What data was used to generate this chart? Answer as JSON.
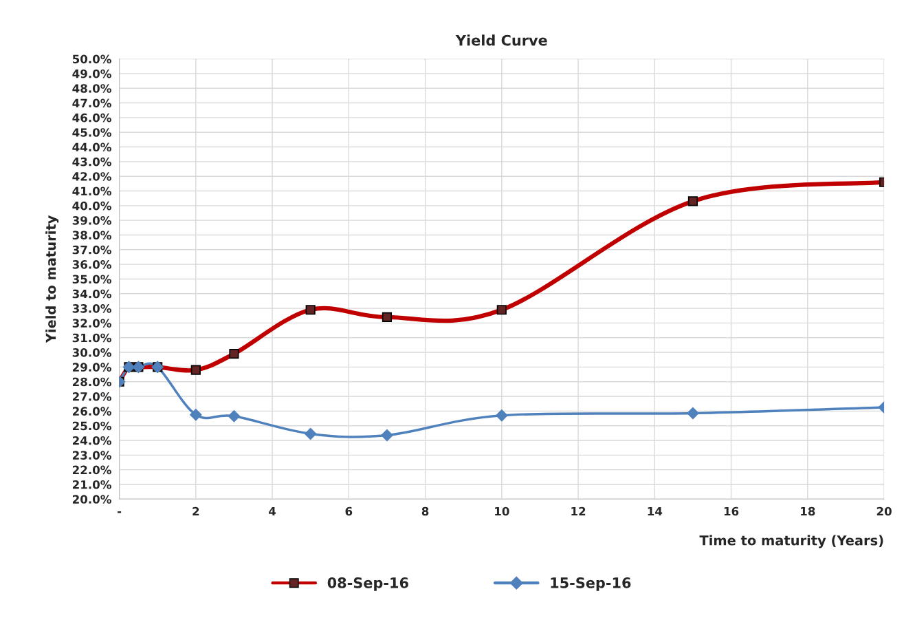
{
  "chart_data": {
    "type": "line",
    "title": "Yield Curve",
    "xlabel": "Time to maturity (Years)",
    "ylabel": "Yield to maturity",
    "xlim": [
      0,
      20
    ],
    "xticks": [
      {
        "value": 0,
        "label": "-"
      },
      2,
      4,
      6,
      8,
      10,
      12,
      14,
      16,
      18,
      20
    ],
    "ylim": [
      20,
      50
    ],
    "yticks": [
      {
        "value": 20,
        "label": "20.0%"
      },
      {
        "value": 21,
        "label": "21.0%"
      },
      {
        "value": 22,
        "label": "22.0%"
      },
      {
        "value": 23,
        "label": "23.0%"
      },
      {
        "value": 24,
        "label": "24.0%"
      },
      {
        "value": 25,
        "label": "25.0%"
      },
      {
        "value": 26,
        "label": "26.0%"
      },
      {
        "value": 27,
        "label": "27.0%"
      },
      {
        "value": 28,
        "label": "28.0%"
      },
      {
        "value": 29,
        "label": "29.0%"
      },
      {
        "value": 30,
        "label": "30.0%"
      },
      {
        "value": 31,
        "label": "31.0%"
      },
      {
        "value": 32,
        "label": "32.0%"
      },
      {
        "value": 33,
        "label": "33.0%"
      },
      {
        "value": 34,
        "label": "34.0%"
      },
      {
        "value": 35,
        "label": "35.0%"
      },
      {
        "value": 36,
        "label": "36.0%"
      },
      {
        "value": 37,
        "label": "37.0%"
      },
      {
        "value": 38,
        "label": "38.0%"
      },
      {
        "value": 39,
        "label": "39.0%"
      },
      {
        "value": 40,
        "label": "40.0%"
      },
      {
        "value": 41,
        "label": "41.0%"
      },
      {
        "value": 42,
        "label": "42.0%"
      },
      {
        "value": 43,
        "label": "43.0%"
      },
      {
        "value": 44,
        "label": "44.0%"
      },
      {
        "value": 45,
        "label": "45.0%"
      },
      {
        "value": 46,
        "label": "46.0%"
      },
      {
        "value": 47,
        "label": "47.0%"
      },
      {
        "value": 48,
        "label": "48.0%"
      },
      {
        "value": 49,
        "label": "49.0%"
      },
      {
        "value": 50,
        "label": "50.0%"
      }
    ],
    "x": [
      0,
      0.25,
      0.5,
      1,
      2,
      3,
      5,
      7,
      10,
      15,
      20
    ],
    "series": [
      {
        "name": "08-Sep-16",
        "color": "#c00000",
        "marker": "square",
        "values": [
          28.0,
          29.0,
          29.0,
          29.0,
          28.8,
          29.9,
          32.9,
          32.4,
          32.9,
          40.3,
          41.6
        ]
      },
      {
        "name": "15-Sep-16",
        "color": "#4f81bd",
        "marker": "diamond",
        "values": [
          28.0,
          29.0,
          29.0,
          29.0,
          25.75,
          25.65,
          24.45,
          24.35,
          25.7,
          25.85,
          26.25
        ]
      }
    ],
    "grid": true,
    "legend": "bottom",
    "line_style": "solid"
  }
}
